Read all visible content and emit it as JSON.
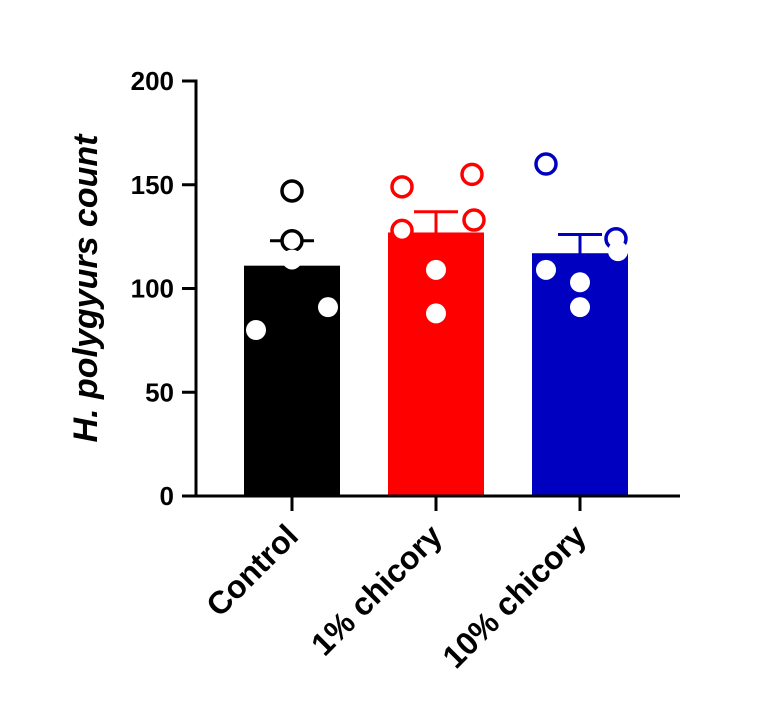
{
  "chart_data": {
    "type": "bar",
    "title": "",
    "xlabel": "",
    "ylabel": "H. polygyurs count",
    "ylim": [
      0,
      200
    ],
    "yticks": [
      0,
      50,
      100,
      150,
      200
    ],
    "categories": [
      "Control",
      "1% chicory",
      "10% chicory"
    ],
    "values": [
      111,
      127,
      117
    ],
    "error_upper": [
      123,
      137,
      126
    ],
    "colors": [
      "#000000",
      "#ff0000",
      "#0000c0"
    ],
    "points": [
      [
        {
          "y": 147,
          "fill": "open"
        },
        {
          "y": 123,
          "fill": "open"
        },
        {
          "y": 114,
          "fill": "filled"
        },
        {
          "y": 91,
          "fill": "filled"
        },
        {
          "y": 80,
          "fill": "filled"
        }
      ],
      [
        {
          "y": 149,
          "fill": "open"
        },
        {
          "y": 155,
          "fill": "open"
        },
        {
          "y": 133,
          "fill": "open"
        },
        {
          "y": 128,
          "fill": "open"
        },
        {
          "y": 109,
          "fill": "filled"
        },
        {
          "y": 88,
          "fill": "filled"
        }
      ],
      [
        {
          "y": 160,
          "fill": "open"
        },
        {
          "y": 124,
          "fill": "open"
        },
        {
          "y": 118,
          "fill": "filled"
        },
        {
          "y": 109,
          "fill": "filled"
        },
        {
          "y": 103,
          "fill": "filled"
        },
        {
          "y": 91,
          "fill": "filled"
        }
      ]
    ]
  }
}
